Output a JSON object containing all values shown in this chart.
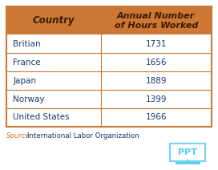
{
  "header_col1": "Country",
  "header_col2": "Annual Number\nof Hours Worked",
  "rows": [
    [
      "Britian",
      "1731"
    ],
    [
      "France",
      "1656"
    ],
    [
      "Japan",
      "1889"
    ],
    [
      "Norway",
      "1399"
    ],
    [
      "United States",
      "1966"
    ]
  ],
  "source_text": "Source: International Labor Organization",
  "header_bg": "#CC7733",
  "header_text_color": "#3B1A00",
  "row_bg": "#FFFFFF",
  "row_text_color": "#1A3A6B",
  "border_color": "#CC7733",
  "fig_bg": "#FFFFFF",
  "ppt_color": "#55CCEE",
  "source_italic_color": "#CC7733",
  "source_normal_color": "#1A3A6B"
}
